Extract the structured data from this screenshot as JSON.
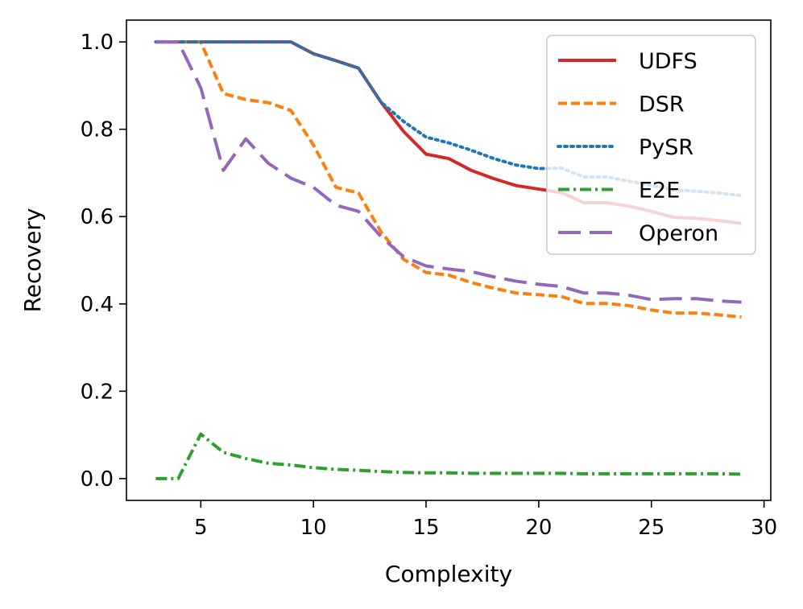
{
  "chart_data": {
    "type": "line",
    "title": "",
    "xlabel": "Complexity",
    "ylabel": "Recovery",
    "xlim": [
      1.7,
      30.3
    ],
    "ylim": [
      -0.05,
      1.05
    ],
    "xticks": [
      5,
      10,
      15,
      20,
      25,
      30
    ],
    "yticks": [
      0.0,
      0.2,
      0.4,
      0.6,
      0.8,
      1.0
    ],
    "xtick_labels": [
      "5",
      "10",
      "15",
      "20",
      "25",
      "30"
    ],
    "ytick_labels": [
      "0.0",
      "0.2",
      "0.4",
      "0.6",
      "0.8",
      "1.0"
    ],
    "grid": false,
    "legend_position": "top-right",
    "x": [
      3,
      4,
      5,
      6,
      7,
      8,
      9,
      10,
      11,
      12,
      13,
      14,
      15,
      16,
      17,
      18,
      19,
      20,
      21,
      22,
      23,
      24,
      25,
      26,
      27,
      28,
      29
    ],
    "series": [
      {
        "name": "UDFS",
        "color": "#d62728",
        "dash": "solid",
        "values": [
          1.0,
          1.0,
          1.0,
          1.0,
          1.0,
          1.0,
          1.0,
          0.973,
          0.957,
          0.94,
          0.862,
          0.795,
          0.743,
          0.733,
          0.706,
          0.687,
          0.671,
          0.663,
          0.655,
          0.632,
          0.632,
          0.624,
          0.612,
          0.598,
          0.596,
          0.591,
          0.584
        ]
      },
      {
        "name": "DSR",
        "color": "#ff7f0e",
        "dash": "dashed",
        "values": [
          1.0,
          1.0,
          1.0,
          0.882,
          0.868,
          0.861,
          0.843,
          0.764,
          0.667,
          0.654,
          0.565,
          0.502,
          0.472,
          0.466,
          0.449,
          0.436,
          0.425,
          0.421,
          0.417,
          0.401,
          0.401,
          0.396,
          0.386,
          0.379,
          0.379,
          0.375,
          0.37
        ]
      },
      {
        "name": "PySR",
        "color": "#1f77b4",
        "dash": "dotted",
        "values": [
          1.0,
          1.0,
          1.0,
          1.0,
          1.0,
          1.0,
          1.0,
          0.973,
          0.957,
          0.94,
          0.862,
          0.818,
          0.782,
          0.769,
          0.752,
          0.733,
          0.718,
          0.71,
          0.711,
          0.691,
          0.691,
          0.681,
          0.671,
          0.661,
          0.658,
          0.654,
          0.648
        ]
      },
      {
        "name": "E2E",
        "color": "#2ca02c",
        "dash": "dashdot",
        "values": [
          0.0,
          0.0,
          0.102,
          0.06,
          0.046,
          0.035,
          0.031,
          0.025,
          0.021,
          0.019,
          0.016,
          0.014,
          0.013,
          0.013,
          0.012,
          0.012,
          0.012,
          0.012,
          0.012,
          0.011,
          0.011,
          0.011,
          0.011,
          0.011,
          0.011,
          0.011,
          0.01
        ]
      },
      {
        "name": "Operon",
        "color": "#9467bd",
        "dash": "longdash",
        "values": [
          1.0,
          1.0,
          0.895,
          0.706,
          0.778,
          0.722,
          0.688,
          0.667,
          0.626,
          0.612,
          0.554,
          0.508,
          0.487,
          0.48,
          0.474,
          0.462,
          0.452,
          0.445,
          0.44,
          0.425,
          0.425,
          0.42,
          0.41,
          0.412,
          0.412,
          0.407,
          0.404
        ]
      }
    ]
  }
}
